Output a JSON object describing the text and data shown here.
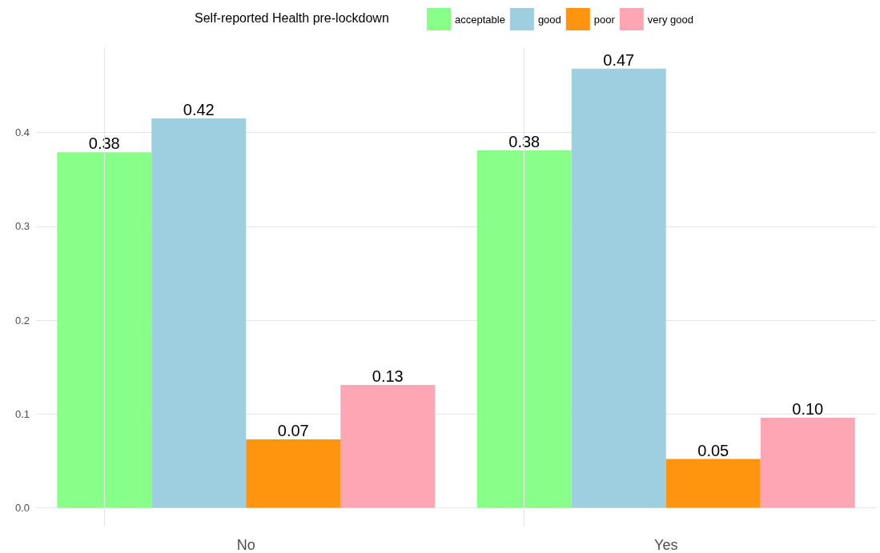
{
  "chart_data": {
    "type": "bar",
    "legend_title": "Self-reported Health pre-lockdown",
    "categories": [
      "No",
      "Yes"
    ],
    "series": [
      {
        "name": "acceptable",
        "color": "#88ff88",
        "values": [
          0.379,
          0.381
        ],
        "value_labels": [
          "0.38",
          "0.38"
        ]
      },
      {
        "name": "good",
        "color": "#9ecfe0",
        "values": [
          0.415,
          0.468
        ],
        "value_labels": [
          "0.42",
          "0.47"
        ]
      },
      {
        "name": "poor",
        "color": "#ff950e",
        "values": [
          0.073,
          0.052
        ],
        "value_labels": [
          "0.07",
          "0.05"
        ]
      },
      {
        "name": "very good",
        "color": "#ffa6b4",
        "values": [
          0.131,
          0.096
        ],
        "value_labels": [
          "0.13",
          "0.10"
        ]
      }
    ],
    "ylim": [
      -0.02,
      0.49
    ],
    "yticks": [
      {
        "value": 0,
        "label": "0.0"
      },
      0.1,
      0.2,
      0.3,
      0.4
    ],
    "grid": true,
    "legend": "top"
  }
}
